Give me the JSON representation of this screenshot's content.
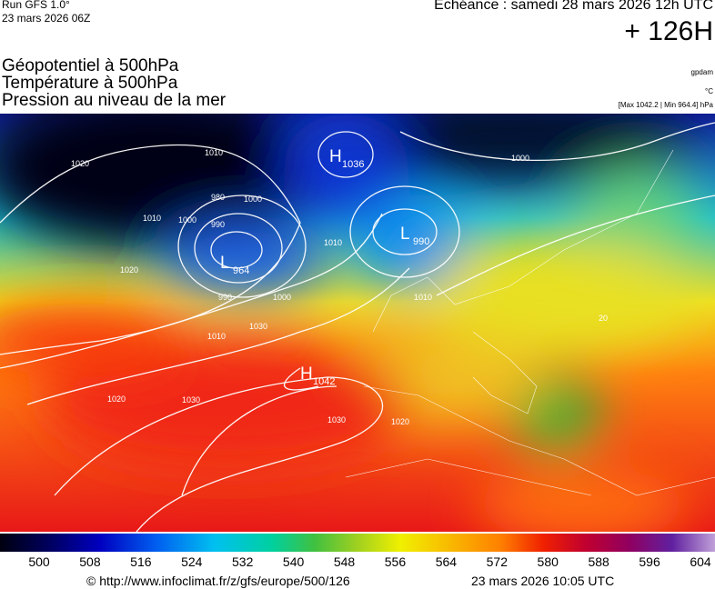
{
  "header": {
    "run": "Run GFS 1.0°",
    "run_date": "23 mars 2026 06Z",
    "valid": "Echéance : samedi 28 mars 2026 12h UTC",
    "lead": "+ 126H",
    "fields": [
      "Géopotentiel à 500hPa",
      "Température à 500hPa",
      "Pression au niveau de la mer"
    ],
    "units": [
      "gpdam",
      "°C",
      "[Max 1042.2 | Min 964.4] hPa"
    ]
  },
  "map": {
    "centers": [
      {
        "letter": "H",
        "value": 1036
      },
      {
        "letter": "L",
        "value": 990
      },
      {
        "letter": "L",
        "value": 964
      },
      {
        "letter": "H",
        "value": 1042
      }
    ],
    "isobar_labels": [
      1010,
      1020,
      1000,
      990,
      980,
      1010,
      1020,
      1000,
      990,
      1000,
      1010,
      1010,
      1030,
      1020,
      1030,
      1030,
      1020,
      1010,
      1000,
      20
    ]
  },
  "colorbar": {
    "ticks": [
      500,
      508,
      516,
      524,
      532,
      540,
      548,
      556,
      564,
      572,
      580,
      588,
      596,
      604
    ]
  },
  "footer": {
    "source": "© http://www.infoclimat.fr/z/gfs/europe/500/126",
    "stamp": "23 mars 2026 10:05 UTC"
  }
}
